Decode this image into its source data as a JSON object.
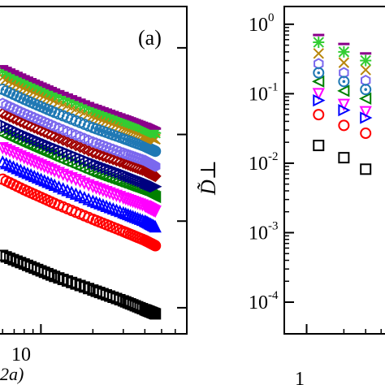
{
  "chart_data": [
    {
      "type": "scatter",
      "panel_label": "(a)",
      "xscale": "log",
      "yscale": "log",
      "xlabel_visible": "2a)",
      "x_ticks": [
        {
          "value": 10,
          "label": "10"
        }
      ],
      "xlim": [
        5.2,
        70
      ],
      "ylim": [
        0.5,
        3000
      ],
      "series": [
        {
          "color": "#000000",
          "marker": "square",
          "x": [
            5.2,
            8,
            12,
            20,
            30,
            40,
            46
          ],
          "y": [
            4.5,
            3.2,
            2.3,
            1.6,
            1.2,
            0.95,
            0.85
          ]
        },
        {
          "color": "#ff0000",
          "marker": "circle",
          "x": [
            5.2,
            8,
            12,
            20,
            30,
            40,
            46
          ],
          "y": [
            35,
            23,
            16,
            10.5,
            7.6,
            6,
            5.2
          ]
        },
        {
          "color": "#0000ff",
          "marker": "triangle-up",
          "x": [
            5.2,
            8,
            12,
            20,
            30,
            40,
            46
          ],
          "y": [
            55,
            37,
            26,
            17,
            12.5,
            10,
            8.6
          ]
        },
        {
          "color": "#ff00ff",
          "marker": "triangle-down",
          "x": [
            5.2,
            8,
            12,
            20,
            30,
            40,
            46
          ],
          "y": [
            80,
            54,
            38,
            25,
            18.5,
            15,
            13
          ]
        },
        {
          "color": "#008000",
          "marker": "triangle-left",
          "x": [
            5.2,
            8,
            12,
            20,
            30,
            40,
            46
          ],
          "y": [
            115,
            78,
            55,
            36,
            27,
            22,
            19
          ]
        },
        {
          "color": "#000080",
          "marker": "triangle-right",
          "x": [
            5.2,
            8,
            12,
            20,
            30,
            40,
            46
          ],
          "y": [
            150,
            100,
            71,
            47,
            35,
            28,
            25
          ]
        },
        {
          "color": "#a00000",
          "marker": "diamond",
          "x": [
            5.2,
            8,
            12,
            20,
            30,
            40,
            46
          ],
          "y": [
            200,
            135,
            95,
            62,
            47,
            38,
            33
          ]
        },
        {
          "color": "#7b68ee",
          "marker": "hexagon",
          "x": [
            5.2,
            8,
            12,
            20,
            30,
            40,
            46
          ],
          "y": [
            260,
            175,
            124,
            82,
            61,
            50,
            43
          ]
        },
        {
          "color": "#1f78b4",
          "marker": "circle-dot",
          "x": [
            5.2,
            8,
            12,
            20,
            30,
            40,
            46
          ],
          "y": [
            380,
            255,
            180,
            120,
            90,
            73,
            64
          ]
        },
        {
          "color": "#b8860b",
          "marker": "x",
          "x": [
            5.2,
            8,
            12,
            20,
            30,
            40,
            46
          ],
          "y": [
            520,
            350,
            250,
            165,
            123,
            100,
            88
          ]
        },
        {
          "color": "#32cd32",
          "marker": "asterisk",
          "x": [
            5.2,
            8,
            12,
            20,
            30,
            40,
            46
          ],
          "y": [
            620,
            420,
            295,
            195,
            146,
            118,
            104
          ]
        },
        {
          "color": "#8b008b",
          "marker": "dash",
          "x": [
            5.2,
            8,
            12,
            20,
            30,
            40,
            46
          ],
          "y": [
            700,
            470,
            330,
            220,
            165,
            133,
            117
          ]
        }
      ]
    },
    {
      "type": "scatter",
      "ylabel": "D̃⊥",
      "xscale": "log",
      "yscale": "log",
      "x_ticks": [
        {
          "value": 1,
          "label": "1"
        }
      ],
      "y_ticks": [
        {
          "value": 1,
          "label": "10",
          "exp": "0"
        },
        {
          "value": 0.1,
          "label": "10",
          "exp": "-1"
        },
        {
          "value": 0.01,
          "label": "10",
          "exp": "-2"
        },
        {
          "value": 0.001,
          "label": "10",
          "exp": "-3"
        },
        {
          "value": 0.0001,
          "label": "10",
          "exp": "-4"
        }
      ],
      "xlim": [
        0.66,
        5.0
      ],
      "ylim": [
        3.5e-05,
        1.8
      ],
      "series": [
        {
          "color": "#000000",
          "marker": "square",
          "x": [
            1.25,
            2,
            3
          ],
          "y": [
            0.018,
            0.012,
            0.0082
          ]
        },
        {
          "color": "#ff0000",
          "marker": "circle",
          "x": [
            1.25,
            2,
            3
          ],
          "y": [
            0.05,
            0.035,
            0.027
          ]
        },
        {
          "color": "#008000",
          "marker": "triangle-left",
          "x": [
            1.25,
            2,
            3
          ],
          "y": [
            0.15,
            0.11,
            0.085
          ]
        },
        {
          "color": "#ff00ff",
          "marker": "triangle-down",
          "x": [
            1.25,
            2,
            3
          ],
          "y": [
            0.1,
            0.07,
            0.055
          ]
        },
        {
          "color": "#0000ff",
          "marker": "triangle-right",
          "x": [
            1.25,
            2,
            3
          ],
          "y": [
            0.08,
            0.058,
            0.045
          ]
        },
        {
          "color": "#7b68ee",
          "marker": "hexagon",
          "x": [
            1.25,
            2,
            3
          ],
          "y": [
            0.27,
            0.2,
            0.155
          ]
        },
        {
          "color": "#1f78b4",
          "marker": "circle-dot",
          "x": [
            1.25,
            2,
            3
          ],
          "y": [
            0.2,
            0.15,
            0.115
          ]
        },
        {
          "color": "#b8860b",
          "marker": "x",
          "x": [
            1.25,
            2,
            3
          ],
          "y": [
            0.38,
            0.28,
            0.22
          ]
        },
        {
          "color": "#32cd32",
          "marker": "asterisk",
          "x": [
            1.25,
            2,
            3
          ],
          "y": [
            0.55,
            0.4,
            0.3
          ]
        },
        {
          "color": "#8b008b",
          "marker": "dash",
          "x": [
            1.25,
            2,
            3
          ],
          "y": [
            0.7,
            0.52,
            0.38
          ]
        }
      ]
    }
  ]
}
